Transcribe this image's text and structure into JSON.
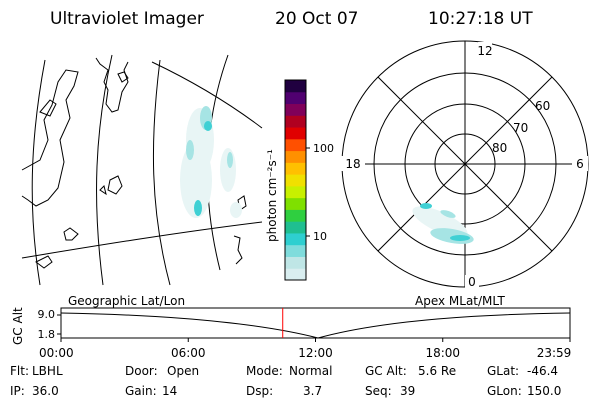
{
  "header": {
    "instrument": "Ultraviolet Imager",
    "date": "20 Oct 07",
    "time": "10:27:18 UT"
  },
  "map_panel": {
    "label": "Geographic Lat/Lon"
  },
  "colorbar": {
    "unit_label": "photon cm⁻²s⁻¹",
    "ticks": [
      "100",
      "10"
    ],
    "colors": [
      "#d9eef0",
      "#bfe6e6",
      "#7fdcdc",
      "#2ecfd0",
      "#1fbf90",
      "#2fcf40",
      "#7fe000",
      "#c8f000",
      "#f0e000",
      "#ffc000",
      "#ff9000",
      "#ff5000",
      "#e00000",
      "#b00020",
      "#80005a",
      "#500070",
      "#200040"
    ]
  },
  "polar_panel": {
    "label": "Apex MLat/MLT",
    "mlt_labels": {
      "top": "12",
      "left": "18",
      "right": "6",
      "bottom": "0"
    },
    "lat_labels": [
      "60",
      "70",
      "80"
    ]
  },
  "timeline": {
    "y_label": "GC Alt",
    "y_ticks": [
      "9.0",
      "1.8"
    ],
    "x_ticks": [
      "00:00",
      "06:00",
      "12:00",
      "18:00",
      "23:59"
    ],
    "current_marker_hours": 10.455,
    "marker_color": "#ff0000"
  },
  "status": {
    "flt_label": "Flt:",
    "flt_value": "LBHL",
    "door_label": "Door:",
    "door_value": "Open",
    "mode_label": "Mode:",
    "mode_value": "Normal",
    "gcalt_label": "GC Alt:",
    "gcalt_value": "5.6 Re",
    "glat_label": "GLat:",
    "glat_value": "-46.4",
    "ip_label": "IP:",
    "ip_value": "36.0",
    "gain_label": "Gain:",
    "gain_value": "14",
    "dsp_label": "Dsp:",
    "dsp_value": "3.7",
    "seq_label": "Seq:",
    "seq_value": "39",
    "glon_label": "GLon:",
    "glon_value": "150.0"
  },
  "colors": {
    "aurora_light": "#dff2f2",
    "aurora_mid": "#a6e4e4",
    "aurora_bright": "#3fd0d4"
  }
}
